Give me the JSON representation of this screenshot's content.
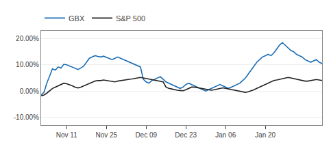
{
  "chart_data": {
    "type": "line",
    "categories": [
      null,
      null,
      null,
      null,
      null,
      null,
      null,
      null,
      null,
      "Nov 11",
      null,
      null,
      null,
      null,
      null,
      null,
      null,
      null,
      null,
      null,
      null,
      null,
      null,
      "Nov 25",
      null,
      null,
      null,
      null,
      null,
      null,
      null,
      null,
      null,
      null,
      null,
      null,
      null,
      "Dec 09",
      null,
      null,
      null,
      null,
      null,
      null,
      null,
      null,
      null,
      null,
      null,
      null,
      null,
      "Dec 23",
      null,
      null,
      null,
      null,
      null,
      null,
      null,
      null,
      null,
      null,
      null,
      null,
      null,
      "Jan 06",
      null,
      null,
      null,
      null,
      null,
      null,
      null,
      null,
      null,
      null,
      null,
      null,
      null,
      "Jan 20",
      null,
      null,
      null,
      null,
      null,
      null,
      null,
      null,
      null,
      null,
      null,
      null,
      null,
      null,
      null,
      null,
      null,
      null,
      null,
      null
    ],
    "series": [
      {
        "name": "GBX",
        "color": "#1a6db5",
        "values": [
          -1.5,
          -0.5,
          3.0,
          6.0,
          8.5,
          8.0,
          9.2,
          8.8,
          10.2,
          10.0,
          9.5,
          9.0,
          8.5,
          8.2,
          8.8,
          9.5,
          11.0,
          12.5,
          13.0,
          13.5,
          13.2,
          13.0,
          13.3,
          12.8,
          12.5,
          12.0,
          12.5,
          13.0,
          12.5,
          12.0,
          11.5,
          11.0,
          10.5,
          10.0,
          9.5,
          9.2,
          4.5,
          3.5,
          3.0,
          4.0,
          4.5,
          5.0,
          5.5,
          4.5,
          3.5,
          3.0,
          2.5,
          2.0,
          1.5,
          1.0,
          1.5,
          2.5,
          3.0,
          2.5,
          2.0,
          1.5,
          1.0,
          0.5,
          0.0,
          0.5,
          1.0,
          1.5,
          2.0,
          2.5,
          2.0,
          1.5,
          1.0,
          1.5,
          2.0,
          2.5,
          3.0,
          4.0,
          5.0,
          6.5,
          8.0,
          9.5,
          11.0,
          12.0,
          13.0,
          13.5,
          14.0,
          13.5,
          14.5,
          16.0,
          17.5,
          18.5,
          17.5,
          16.5,
          15.5,
          15.0,
          14.0,
          13.5,
          13.0,
          12.0,
          11.5,
          11.0,
          11.5,
          12.0,
          11.0,
          10.5
        ]
      },
      {
        "name": "S&P 500",
        "color": "#222222",
        "values": [
          -1.8,
          -1.5,
          -0.8,
          0.0,
          1.0,
          1.5,
          2.0,
          2.5,
          3.0,
          2.8,
          2.5,
          2.0,
          1.5,
          1.2,
          1.5,
          2.0,
          2.5,
          3.0,
          3.5,
          3.8,
          4.0,
          4.0,
          4.2,
          4.0,
          3.8,
          3.5,
          3.5,
          3.8,
          4.0,
          4.2,
          4.4,
          4.5,
          4.6,
          4.8,
          5.0,
          5.2,
          5.0,
          4.8,
          4.6,
          4.4,
          4.2,
          4.0,
          3.8,
          3.5,
          1.5,
          1.0,
          0.8,
          0.5,
          0.3,
          0.2,
          0.1,
          0.5,
          1.0,
          1.5,
          1.5,
          1.3,
          1.0,
          0.8,
          0.6,
          0.5,
          0.3,
          0.5,
          0.8,
          1.0,
          1.2,
          1.0,
          0.8,
          0.5,
          0.3,
          0.2,
          0.0,
          -0.2,
          -0.5,
          -0.3,
          0.0,
          0.5,
          1.0,
          1.5,
          2.0,
          2.5,
          3.0,
          3.5,
          4.0,
          4.2,
          4.5,
          4.8,
          5.0,
          5.2,
          5.0,
          4.8,
          4.5,
          4.3,
          4.0,
          3.8,
          3.8,
          4.0,
          4.2,
          4.4,
          4.2,
          4.0
        ]
      }
    ],
    "ylim": [
      -13,
      23
    ],
    "yticks": [
      {
        "value": -10,
        "label": "-10.00%"
      },
      {
        "value": 0,
        "label": "0.00%"
      },
      {
        "value": 10,
        "label": "10.00%"
      },
      {
        "value": 20,
        "label": "20.00%"
      }
    ],
    "grid": "y",
    "legend": "upper left"
  }
}
